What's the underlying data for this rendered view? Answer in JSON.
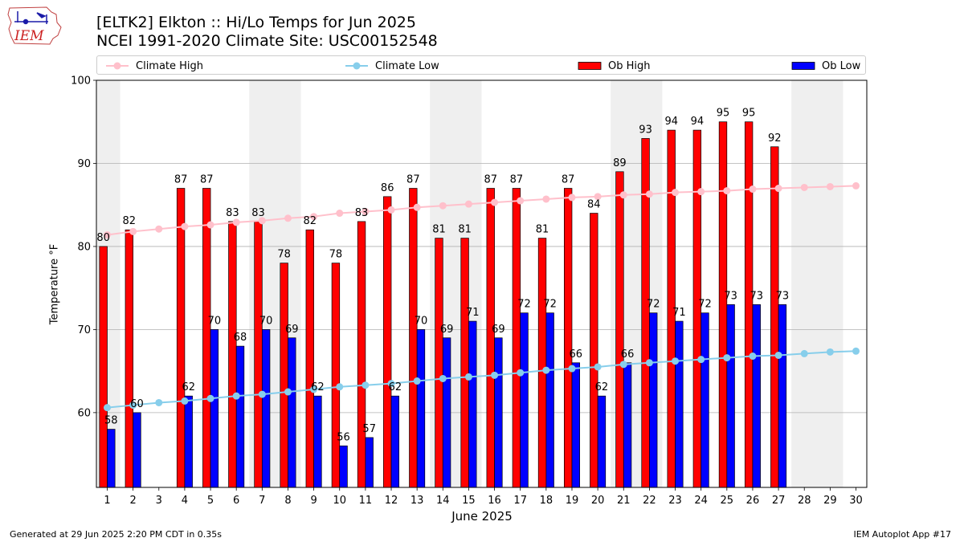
{
  "header": {
    "logo_text": "IEM",
    "title_line1": "[ELTK2] Elkton :: Hi/Lo Temps for Jun 2025",
    "title_line2": "NCEI 1991-2020 Climate Site: USC00152548"
  },
  "footer": {
    "generated": "Generated at 29 Jun 2025 2:20 PM CDT in 0.35s",
    "app": "IEM Autoplot App #17"
  },
  "colors": {
    "ob_high": "#ff0000",
    "ob_low": "#0000ff",
    "climate_high": "#ffc0cb",
    "climate_low": "#87ceeb",
    "weekend_band": "#efefef",
    "grid": "#b0b0b0"
  },
  "chart_data": {
    "type": "bar",
    "xlabel": "June 2025",
    "ylabel": "Temperature °F",
    "ylim": [
      51,
      100
    ],
    "yticks": [
      60,
      70,
      80,
      90,
      100
    ],
    "grid": "horizontal",
    "legend": "top",
    "x": [
      1,
      2,
      3,
      4,
      5,
      6,
      7,
      8,
      9,
      10,
      11,
      12,
      13,
      14,
      15,
      16,
      17,
      18,
      19,
      20,
      21,
      22,
      23,
      24,
      25,
      26,
      27,
      28,
      29,
      30
    ],
    "shaded_days": [
      [
        1,
        1
      ],
      [
        7,
        8
      ],
      [
        14,
        15
      ],
      [
        21,
        22
      ],
      [
        28,
        29
      ]
    ],
    "series": [
      {
        "name": "Ob High",
        "kind": "bar",
        "values": [
          80,
          82,
          null,
          87,
          87,
          83,
          83,
          78,
          82,
          78,
          83,
          86,
          87,
          81,
          81,
          87,
          87,
          81,
          87,
          84,
          89,
          93,
          94,
          94,
          95,
          95,
          92,
          null,
          null,
          null
        ]
      },
      {
        "name": "Ob Low",
        "kind": "bar",
        "values": [
          58,
          60,
          null,
          62,
          70,
          68,
          70,
          69,
          62,
          56,
          57,
          62,
          70,
          69,
          71,
          69,
          72,
          72,
          66,
          62,
          66,
          72,
          71,
          72,
          73,
          73,
          73,
          null,
          null,
          null
        ]
      },
      {
        "name": "Climate High",
        "kind": "line",
        "values": [
          81.4,
          81.8,
          82.1,
          82.4,
          82.6,
          82.9,
          83.1,
          83.4,
          83.6,
          84.0,
          84.2,
          84.4,
          84.7,
          84.9,
          85.1,
          85.3,
          85.5,
          85.7,
          85.9,
          86.0,
          86.2,
          86.3,
          86.5,
          86.6,
          86.7,
          86.9,
          87.0,
          87.1,
          87.2,
          87.3
        ]
      },
      {
        "name": "Climate Low",
        "kind": "line",
        "values": [
          60.6,
          60.9,
          61.2,
          61.4,
          61.7,
          62.0,
          62.2,
          62.5,
          62.8,
          63.1,
          63.3,
          63.5,
          63.8,
          64.1,
          64.3,
          64.5,
          64.8,
          65.1,
          65.3,
          65.5,
          65.8,
          66.0,
          66.2,
          66.4,
          66.6,
          66.8,
          66.9,
          67.1,
          67.3,
          67.4
        ]
      }
    ]
  }
}
